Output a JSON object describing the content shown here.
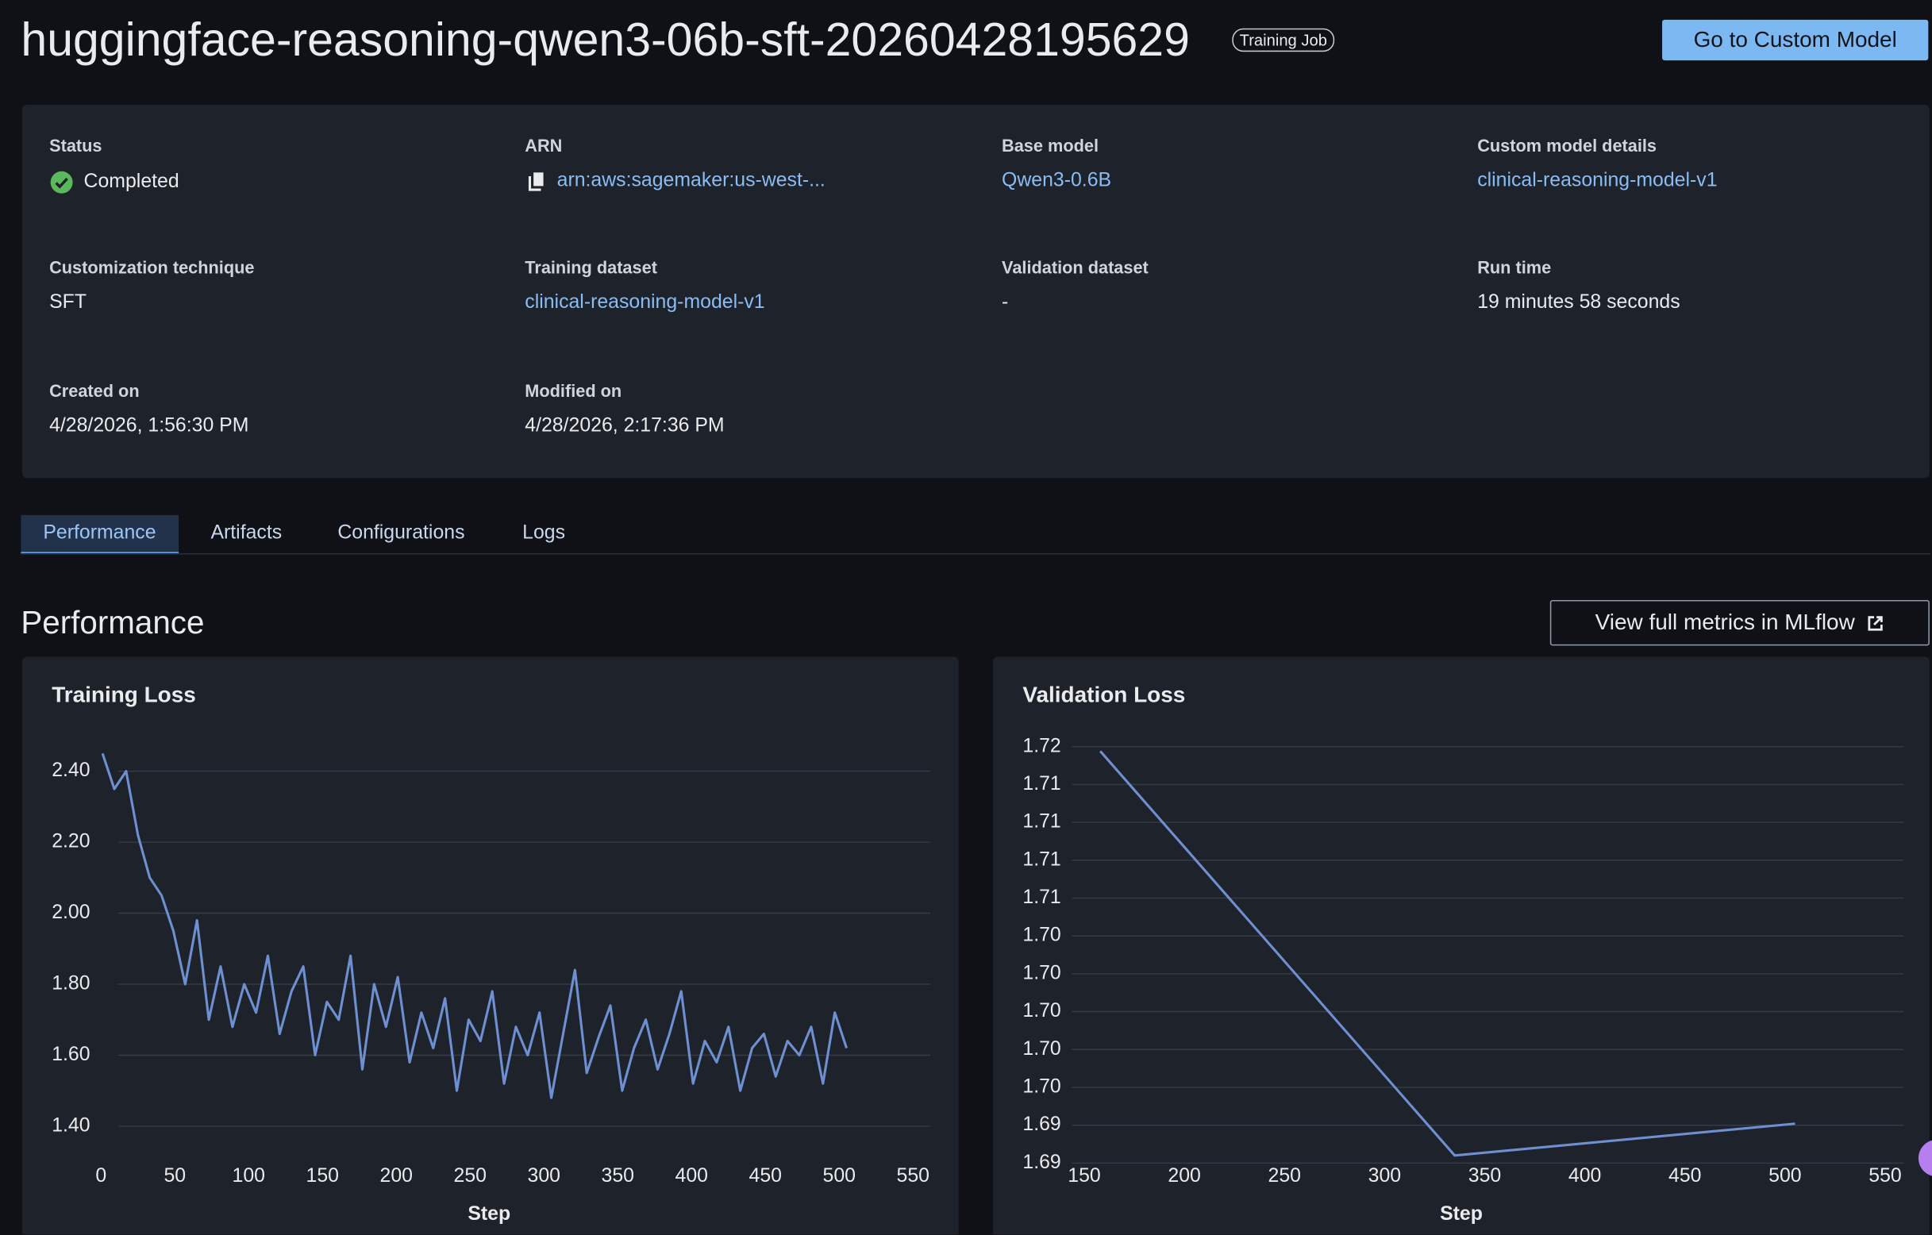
{
  "header": {
    "title": "huggingface-reasoning-qwen3-06b-sft-20260428195629",
    "badge": "Training Job",
    "button": "Go to Custom Model"
  },
  "details": [
    {
      "label": "Status",
      "value": "Completed"
    },
    {
      "label": "ARN",
      "value": "arn:aws:sagemaker:us-west-..."
    },
    {
      "label": "Base model",
      "value": "Qwen3-0.6B"
    },
    {
      "label": "Custom model details",
      "value": "clinical-reasoning-model-v1"
    },
    {
      "label": "Customization technique",
      "value": "SFT"
    },
    {
      "label": "Training dataset",
      "value": "clinical-reasoning-model-v1"
    },
    {
      "label": "Validation dataset",
      "value": "-"
    },
    {
      "label": "Run time",
      "value": "19 minutes 58 seconds"
    },
    {
      "label": "Created on",
      "value": "4/28/2026, 1:56:30 PM"
    },
    {
      "label": "Modified on",
      "value": "4/28/2026, 2:17:36 PM"
    }
  ],
  "tabs": [
    "Performance",
    "Artifacts",
    "Configurations",
    "Logs"
  ],
  "section": {
    "title": "Performance",
    "button": "View full metrics in MLflow"
  },
  "chart_data": [
    {
      "type": "line",
      "title": "Training Loss",
      "x_label": "Step",
      "color": "#6e8fd0",
      "x": [
        1,
        9,
        17,
        25,
        33,
        41,
        49,
        57,
        65,
        73,
        81,
        89,
        97,
        105,
        113,
        121,
        129,
        137,
        145,
        153,
        161,
        169,
        177,
        185,
        193,
        201,
        209,
        217,
        225,
        233,
        241,
        249,
        257,
        265,
        273,
        281,
        289,
        297,
        305,
        313,
        321,
        329,
        337,
        345,
        353,
        361,
        369,
        377,
        385,
        393,
        401,
        409,
        417,
        425,
        433,
        441,
        449,
        457,
        465,
        473,
        481,
        489,
        497,
        505
      ],
      "values": [
        2.45,
        2.35,
        2.4,
        2.22,
        2.1,
        2.05,
        1.95,
        1.8,
        1.98,
        1.7,
        1.85,
        1.68,
        1.8,
        1.72,
        1.88,
        1.66,
        1.78,
        1.85,
        1.6,
        1.75,
        1.7,
        1.88,
        1.56,
        1.8,
        1.68,
        1.82,
        1.58,
        1.72,
        1.62,
        1.76,
        1.5,
        1.7,
        1.64,
        1.78,
        1.52,
        1.68,
        1.6,
        1.72,
        1.48,
        1.66,
        1.84,
        1.55,
        1.65,
        1.74,
        1.5,
        1.62,
        1.7,
        1.56,
        1.66,
        1.78,
        1.52,
        1.64,
        1.58,
        1.68,
        1.5,
        1.62,
        1.66,
        1.54,
        1.64,
        1.6,
        1.68,
        1.52,
        1.72,
        1.62
      ],
      "xlim": [
        0,
        550
      ],
      "xticks": [
        0,
        50,
        100,
        150,
        200,
        250,
        300,
        350,
        400,
        450,
        500,
        550
      ],
      "ylim": [
        1.31,
        2.49
      ],
      "yticks": [
        {
          "value": 1.4,
          "label": "1.40"
        },
        {
          "value": 1.6,
          "label": "1.60"
        },
        {
          "value": 1.8,
          "label": "1.80"
        },
        {
          "value": 2.0,
          "label": "2.00"
        },
        {
          "value": 2.2,
          "label": "2.20"
        },
        {
          "value": 2.4,
          "label": "2.40"
        }
      ],
      "grid": true
    },
    {
      "type": "line",
      "title": "Validation Loss",
      "x_label": "Step",
      "color": "#6e8fd0",
      "x": [
        158,
        335,
        505
      ],
      "values": [
        1.7172,
        1.6905,
        1.6926
      ],
      "xlim": [
        150,
        550
      ],
      "xticks": [
        150,
        200,
        250,
        300,
        350,
        400,
        450,
        500,
        550
      ],
      "ylim": [
        1.69,
        1.7175
      ],
      "yticks": [
        {
          "value": 1.69,
          "label": "1.69"
        },
        {
          "value": 1.6925,
          "label": "1.69"
        },
        {
          "value": 1.695,
          "label": "1.70"
        },
        {
          "value": 1.6975,
          "label": "1.70"
        },
        {
          "value": 1.7,
          "label": "1.70"
        },
        {
          "value": 1.7025,
          "label": "1.70"
        },
        {
          "value": 1.705,
          "label": "1.70"
        },
        {
          "value": 1.7075,
          "label": "1.71"
        },
        {
          "value": 1.71,
          "label": "1.71"
        },
        {
          "value": 1.7125,
          "label": "1.71"
        },
        {
          "value": 1.715,
          "label": "1.71"
        },
        {
          "value": 1.7175,
          "label": "1.72"
        }
      ],
      "grid": true
    }
  ]
}
